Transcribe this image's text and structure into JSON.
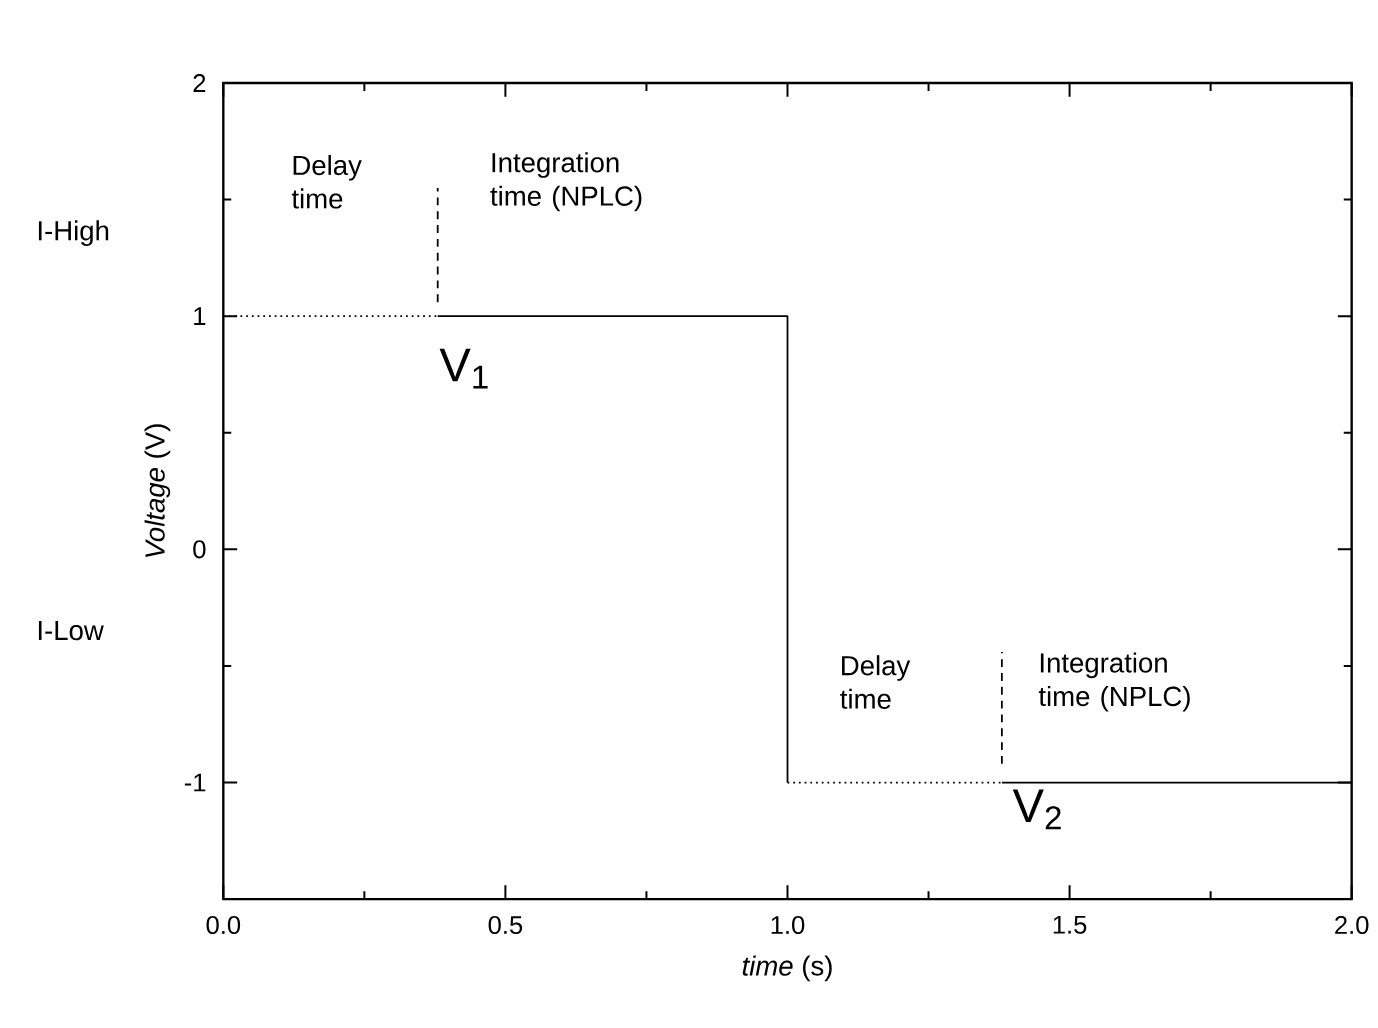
{
  "chart_data": {
    "type": "line",
    "xlabel": "*time* (s)",
    "ylabel": "*Voltage* (V)",
    "xlim": [
      0,
      2
    ],
    "ylim": [
      -1.5,
      2
    ],
    "xticks": [
      {
        "value": 0,
        "label": "0.0"
      },
      {
        "value": 0.5,
        "label": "0.5"
      },
      {
        "value": 1,
        "label": "1.0"
      },
      {
        "value": 1.5,
        "label": "1.5"
      },
      {
        "value": 2,
        "label": "2.0"
      }
    ],
    "yticks": [
      -1,
      0,
      1,
      2
    ],
    "grid": false,
    "marker": "none",
    "series": [
      {
        "color": "#000000",
        "line_style": "dotted",
        "x": [
          0,
          0.38
        ],
        "values": [
          1,
          1
        ]
      },
      {
        "color": "#000000",
        "line_style": "solid",
        "x": [
          0.38,
          1,
          1
        ],
        "values": [
          1,
          1,
          -1
        ]
      },
      {
        "color": "#000000",
        "line_style": "dotted",
        "x": [
          1,
          1.38
        ],
        "values": [
          -1,
          -1
        ]
      },
      {
        "color": "#000000",
        "line_style": "solid",
        "x": [
          1.38,
          2
        ],
        "values": [
          -1,
          -1
        ]
      },
      {
        "color": "#000000",
        "line_style": "dashed",
        "x": [
          0.38,
          0.38
        ],
        "values": [
          1.06,
          1.55
        ]
      },
      {
        "color": "#000000",
        "line_style": "dashed",
        "x": [
          1.38,
          1.38
        ],
        "values": [
          -0.92,
          -0.44
        ]
      }
    ],
    "annotations": [
      "Delay time",
      "Integration time (NPLC)",
      "V$_{1}$",
      "Delay time",
      "Integration time (NPLC)",
      "V$_{2}$",
      "I-High",
      "I-Low"
    ]
  }
}
